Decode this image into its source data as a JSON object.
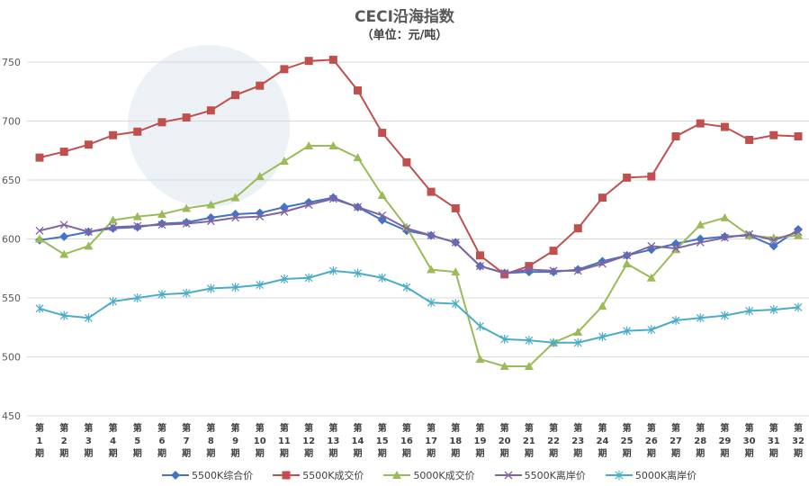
{
  "chart_data": {
    "type": "line",
    "title": "CECI沿海指数",
    "subtitle": "（单位：元/吨）",
    "ylim": [
      450,
      750
    ],
    "yticks": [
      450,
      500,
      550,
      600,
      650,
      700,
      750
    ],
    "grid": true,
    "legend_position": "bottom",
    "x": [
      "第1期",
      "第2期",
      "第3期",
      "第4期",
      "第5期",
      "第6期",
      "第7期",
      "第8期",
      "第9期",
      "第10期",
      "第11期",
      "第12期",
      "第13期",
      "第14期",
      "第15期",
      "第16期",
      "第17期",
      "第18期",
      "第19期",
      "第20期",
      "第21期",
      "第22期",
      "第23期",
      "第24期",
      "第25期",
      "第26期",
      "第27期",
      "第28期",
      "第29期",
      "第30期",
      "第31期",
      "第32期"
    ],
    "x_label_parts": {
      "prefix": "第",
      "suffix": "期"
    },
    "series": [
      {
        "name": "5500K综合价",
        "color": "#4472c4",
        "marker": "diamond",
        "values": [
          599,
          602,
          606,
          609,
          610,
          613,
          614,
          618,
          621,
          622,
          627,
          631,
          635,
          627,
          616,
          607,
          603,
          597,
          577,
          571,
          572,
          572,
          574,
          581,
          586,
          591,
          596,
          600,
          602,
          603,
          594,
          608
        ]
      },
      {
        "name": "5500K成交价",
        "color": "#c0504d",
        "marker": "square",
        "values": [
          669,
          674,
          680,
          688,
          691,
          699,
          703,
          709,
          722,
          730,
          744,
          751,
          752,
          726,
          690,
          665,
          640,
          626,
          586,
          570,
          577,
          590,
          609,
          635,
          652,
          653,
          687,
          698,
          695,
          684,
          688,
          687
        ]
      },
      {
        "name": "5000K成交价",
        "color": "#9bbb59",
        "marker": "triangle",
        "values": [
          600,
          587,
          594,
          616,
          619,
          621,
          626,
          629,
          635,
          653,
          666,
          679,
          679,
          669,
          637,
          610,
          574,
          572,
          498,
          492,
          492,
          512,
          521,
          543,
          579,
          567,
          591,
          612,
          618,
          603,
          601,
          603
        ]
      },
      {
        "name": "5500K离岸价",
        "color": "#8064a2",
        "marker": "x",
        "values": [
          607,
          612,
          606,
          610,
          611,
          612,
          613,
          615,
          618,
          619,
          623,
          629,
          634,
          627,
          620,
          609,
          603,
          597,
          577,
          571,
          574,
          573,
          573,
          579,
          586,
          594,
          592,
          597,
          601,
          604,
          599,
          606
        ]
      },
      {
        "name": "5000K离岸价",
        "color": "#4bacc6",
        "marker": "star",
        "values": [
          541,
          535,
          533,
          547,
          550,
          553,
          554,
          558,
          559,
          561,
          566,
          567,
          573,
          571,
          567,
          559,
          546,
          545,
          526,
          515,
          514,
          512,
          512,
          517,
          522,
          523,
          531,
          533,
          535,
          539,
          540,
          542
        ]
      }
    ]
  }
}
